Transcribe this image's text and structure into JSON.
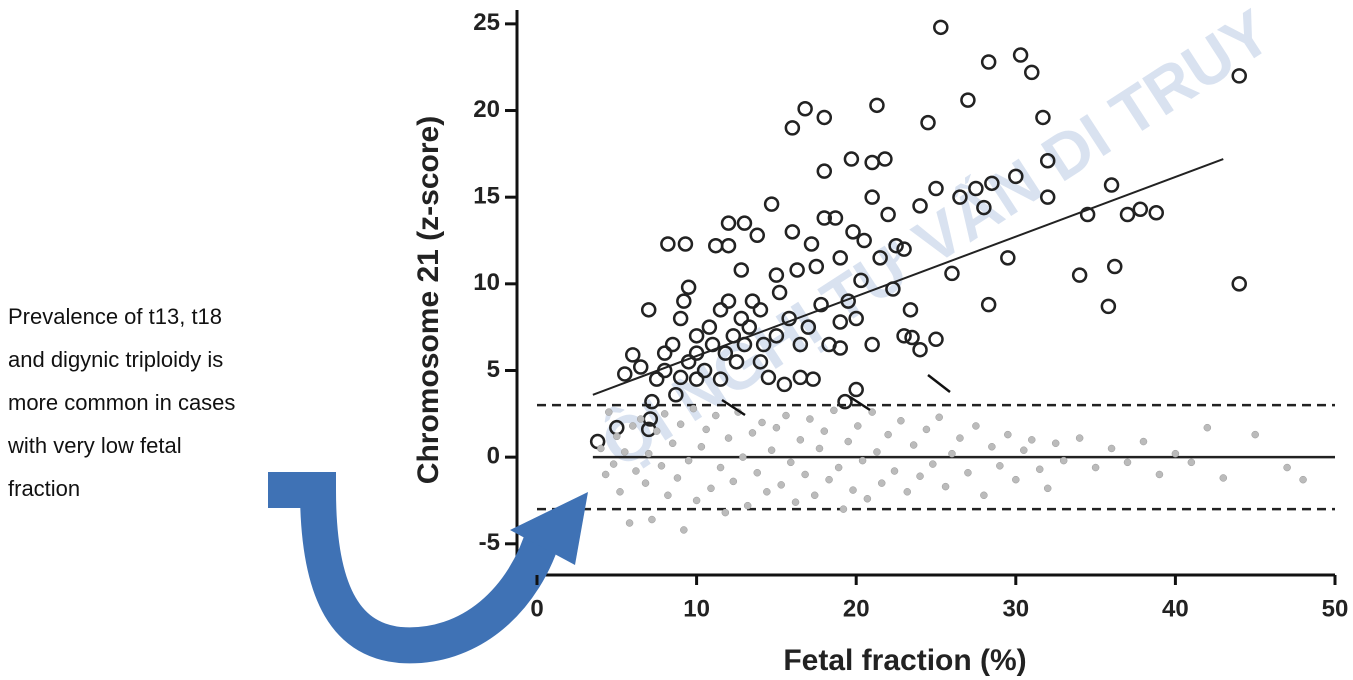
{
  "chart_data": {
    "type": "scatter",
    "x_label": "Fetal fraction (%)",
    "y_label": "Chromosome 21 (z-score)",
    "xlim": [
      0,
      50
    ],
    "ylim": [
      -6.8,
      25.8
    ],
    "xticks": [
      0,
      10,
      20,
      30,
      40,
      50
    ],
    "yticks": [
      -5,
      0,
      5,
      10,
      15,
      20,
      25
    ],
    "reference_lines": [
      3,
      0,
      -3
    ],
    "annotation": [
      "Prevalence of t13, t18",
      "and digynic triploidy is",
      "more common in cases",
      "with very low fetal",
      "fraction"
    ],
    "watermark": "ỘI NGHỊ TƯ VẤN DI TRUY",
    "series": [
      {
        "kind": "points-open",
        "color": "#222222",
        "x": [
          3.8,
          5,
          5.5,
          6,
          6.5,
          7,
          7,
          7.1,
          7.2,
          7.5,
          8,
          8,
          8.2,
          8.5,
          8.7,
          9,
          9,
          9.2,
          9.3,
          9.5,
          9.5,
          10,
          10,
          10,
          10.5,
          10.8,
          11,
          11.2,
          11.5,
          11.5,
          11.8,
          12,
          12,
          12,
          12.3,
          12.5,
          12.8,
          12.8,
          13,
          13,
          13.3,
          13.5,
          13.8,
          14,
          14,
          14.2,
          14.5,
          14.7,
          15,
          15,
          15.2,
          15.5,
          15.8,
          16,
          16,
          16.3,
          16.5,
          16.5,
          16.8,
          17,
          17.2,
          17.3,
          17.5,
          17.8,
          18,
          18,
          18,
          18.3,
          18.7,
          19,
          19,
          19,
          19.3,
          19.5,
          19.7,
          19.8,
          20,
          20,
          20.3,
          20.5,
          21,
          21,
          21,
          21.3,
          21.5,
          21.8,
          22,
          22.3,
          22.5,
          23,
          23,
          23.4,
          23.5,
          24,
          24,
          24.5,
          25,
          25,
          25.3,
          26,
          26.5,
          27,
          27.5,
          28,
          28.3,
          28.3,
          28.5,
          29.5,
          30,
          30.3,
          31,
          31.7,
          32,
          32,
          34,
          34.5,
          35.8,
          36,
          36.2,
          37,
          37.8,
          38.8,
          44,
          44
        ],
        "values": [
          0.9,
          1.7,
          4.8,
          5.9,
          5.2,
          8.5,
          1.6,
          2.2,
          3.2,
          4.5,
          5,
          6,
          12.3,
          6.5,
          3.6,
          4.6,
          8,
          9,
          12.3,
          9.8,
          5.5,
          6,
          7,
          4.5,
          5,
          7.5,
          6.5,
          12.2,
          8.5,
          4.5,
          6,
          13.5,
          9,
          12.2,
          7,
          5.5,
          8,
          10.8,
          13.5,
          6.5,
          7.5,
          9,
          12.8,
          5.5,
          8.5,
          6.5,
          4.6,
          14.6,
          10.5,
          7,
          9.5,
          4.2,
          8,
          13,
          19,
          10.8,
          6.5,
          4.6,
          20.1,
          7.5,
          12.3,
          4.5,
          11,
          8.8,
          16.5,
          19.6,
          13.8,
          6.5,
          13.8,
          11.5,
          7.8,
          6.3,
          3.2,
          9,
          17.2,
          13,
          3.9,
          8,
          10.2,
          12.5,
          17,
          6.5,
          15,
          20.3,
          11.5,
          17.2,
          14,
          9.7,
          12.2,
          12,
          7,
          8.5,
          6.9,
          14.5,
          6.2,
          19.3,
          6.8,
          15.5,
          24.8,
          10.6,
          15,
          20.6,
          15.5,
          14.4,
          22.8,
          8.8,
          15.8,
          11.5,
          16.2,
          23.2,
          22.2,
          19.6,
          17.1,
          15,
          10.5,
          14,
          8.7,
          15.7,
          11,
          14,
          14.3,
          14.1,
          22,
          10
        ]
      },
      {
        "kind": "points-grey",
        "color": "#bbbbbb",
        "x": [
          4,
          4.3,
          4.5,
          4.8,
          5,
          5.2,
          5.5,
          5.8,
          6,
          6.2,
          6.5,
          6.8,
          7,
          7.2,
          7.5,
          7.8,
          8,
          8.2,
          8.5,
          8.8,
          9,
          9.2,
          9.5,
          9.8,
          10,
          10.3,
          10.6,
          10.9,
          11.2,
          11.5,
          11.8,
          12,
          12.3,
          12.6,
          12.9,
          13.2,
          13.5,
          13.8,
          14.1,
          14.4,
          14.7,
          15,
          15.3,
          15.6,
          15.9,
          16.2,
          16.5,
          16.8,
          17.1,
          17.4,
          17.7,
          18,
          18.3,
          18.6,
          18.9,
          19.2,
          19.5,
          19.8,
          20.1,
          20.4,
          20.7,
          21,
          21.3,
          21.6,
          22,
          22.4,
          22.8,
          23.2,
          23.6,
          24,
          24.4,
          24.8,
          25.2,
          25.6,
          26,
          26.5,
          27,
          27.5,
          28,
          28.5,
          29,
          29.5,
          30,
          30.5,
          31,
          31.5,
          32,
          32.5,
          33,
          34,
          35,
          36,
          37,
          38,
          39,
          40,
          41,
          42,
          43,
          45,
          47,
          48
        ],
        "values": [
          0.5,
          -1,
          2.6,
          -0.4,
          1.2,
          -2,
          0.3,
          -3.8,
          1.8,
          -0.8,
          2.2,
          -1.5,
          0.2,
          -3.6,
          1.5,
          -0.5,
          2.5,
          -2.2,
          0.8,
          -1.2,
          1.9,
          -4.2,
          -0.2,
          2.8,
          -2.5,
          0.6,
          1.6,
          -1.8,
          2.4,
          -0.6,
          -3.2,
          1.1,
          -1.4,
          2.6,
          0,
          -2.8,
          1.4,
          -0.9,
          2,
          -2,
          0.4,
          1.7,
          -1.6,
          2.4,
          -0.3,
          -2.6,
          1,
          -1,
          2.2,
          -2.2,
          0.5,
          1.5,
          -1.3,
          2.7,
          -0.6,
          -3,
          0.9,
          -1.9,
          1.8,
          -0.2,
          -2.4,
          2.6,
          0.3,
          -1.5,
          1.3,
          -0.8,
          2.1,
          -2,
          0.7,
          -1.1,
          1.6,
          -0.4,
          2.3,
          -1.7,
          0.2,
          1.1,
          -0.9,
          1.8,
          -2.2,
          0.6,
          -0.5,
          1.3,
          -1.3,
          0.4,
          1,
          -0.7,
          -1.8,
          0.8,
          -0.2,
          1.1,
          -0.6,
          0.5,
          -0.3,
          0.9,
          -1,
          0.2,
          -0.3,
          1.7,
          -1.2,
          1.3,
          -0.6,
          -1.3
        ]
      },
      {
        "kind": "fit-line",
        "color": "#222222",
        "x": [
          3.5,
          43
        ],
        "values": [
          3.6,
          17.2
        ]
      }
    ]
  }
}
